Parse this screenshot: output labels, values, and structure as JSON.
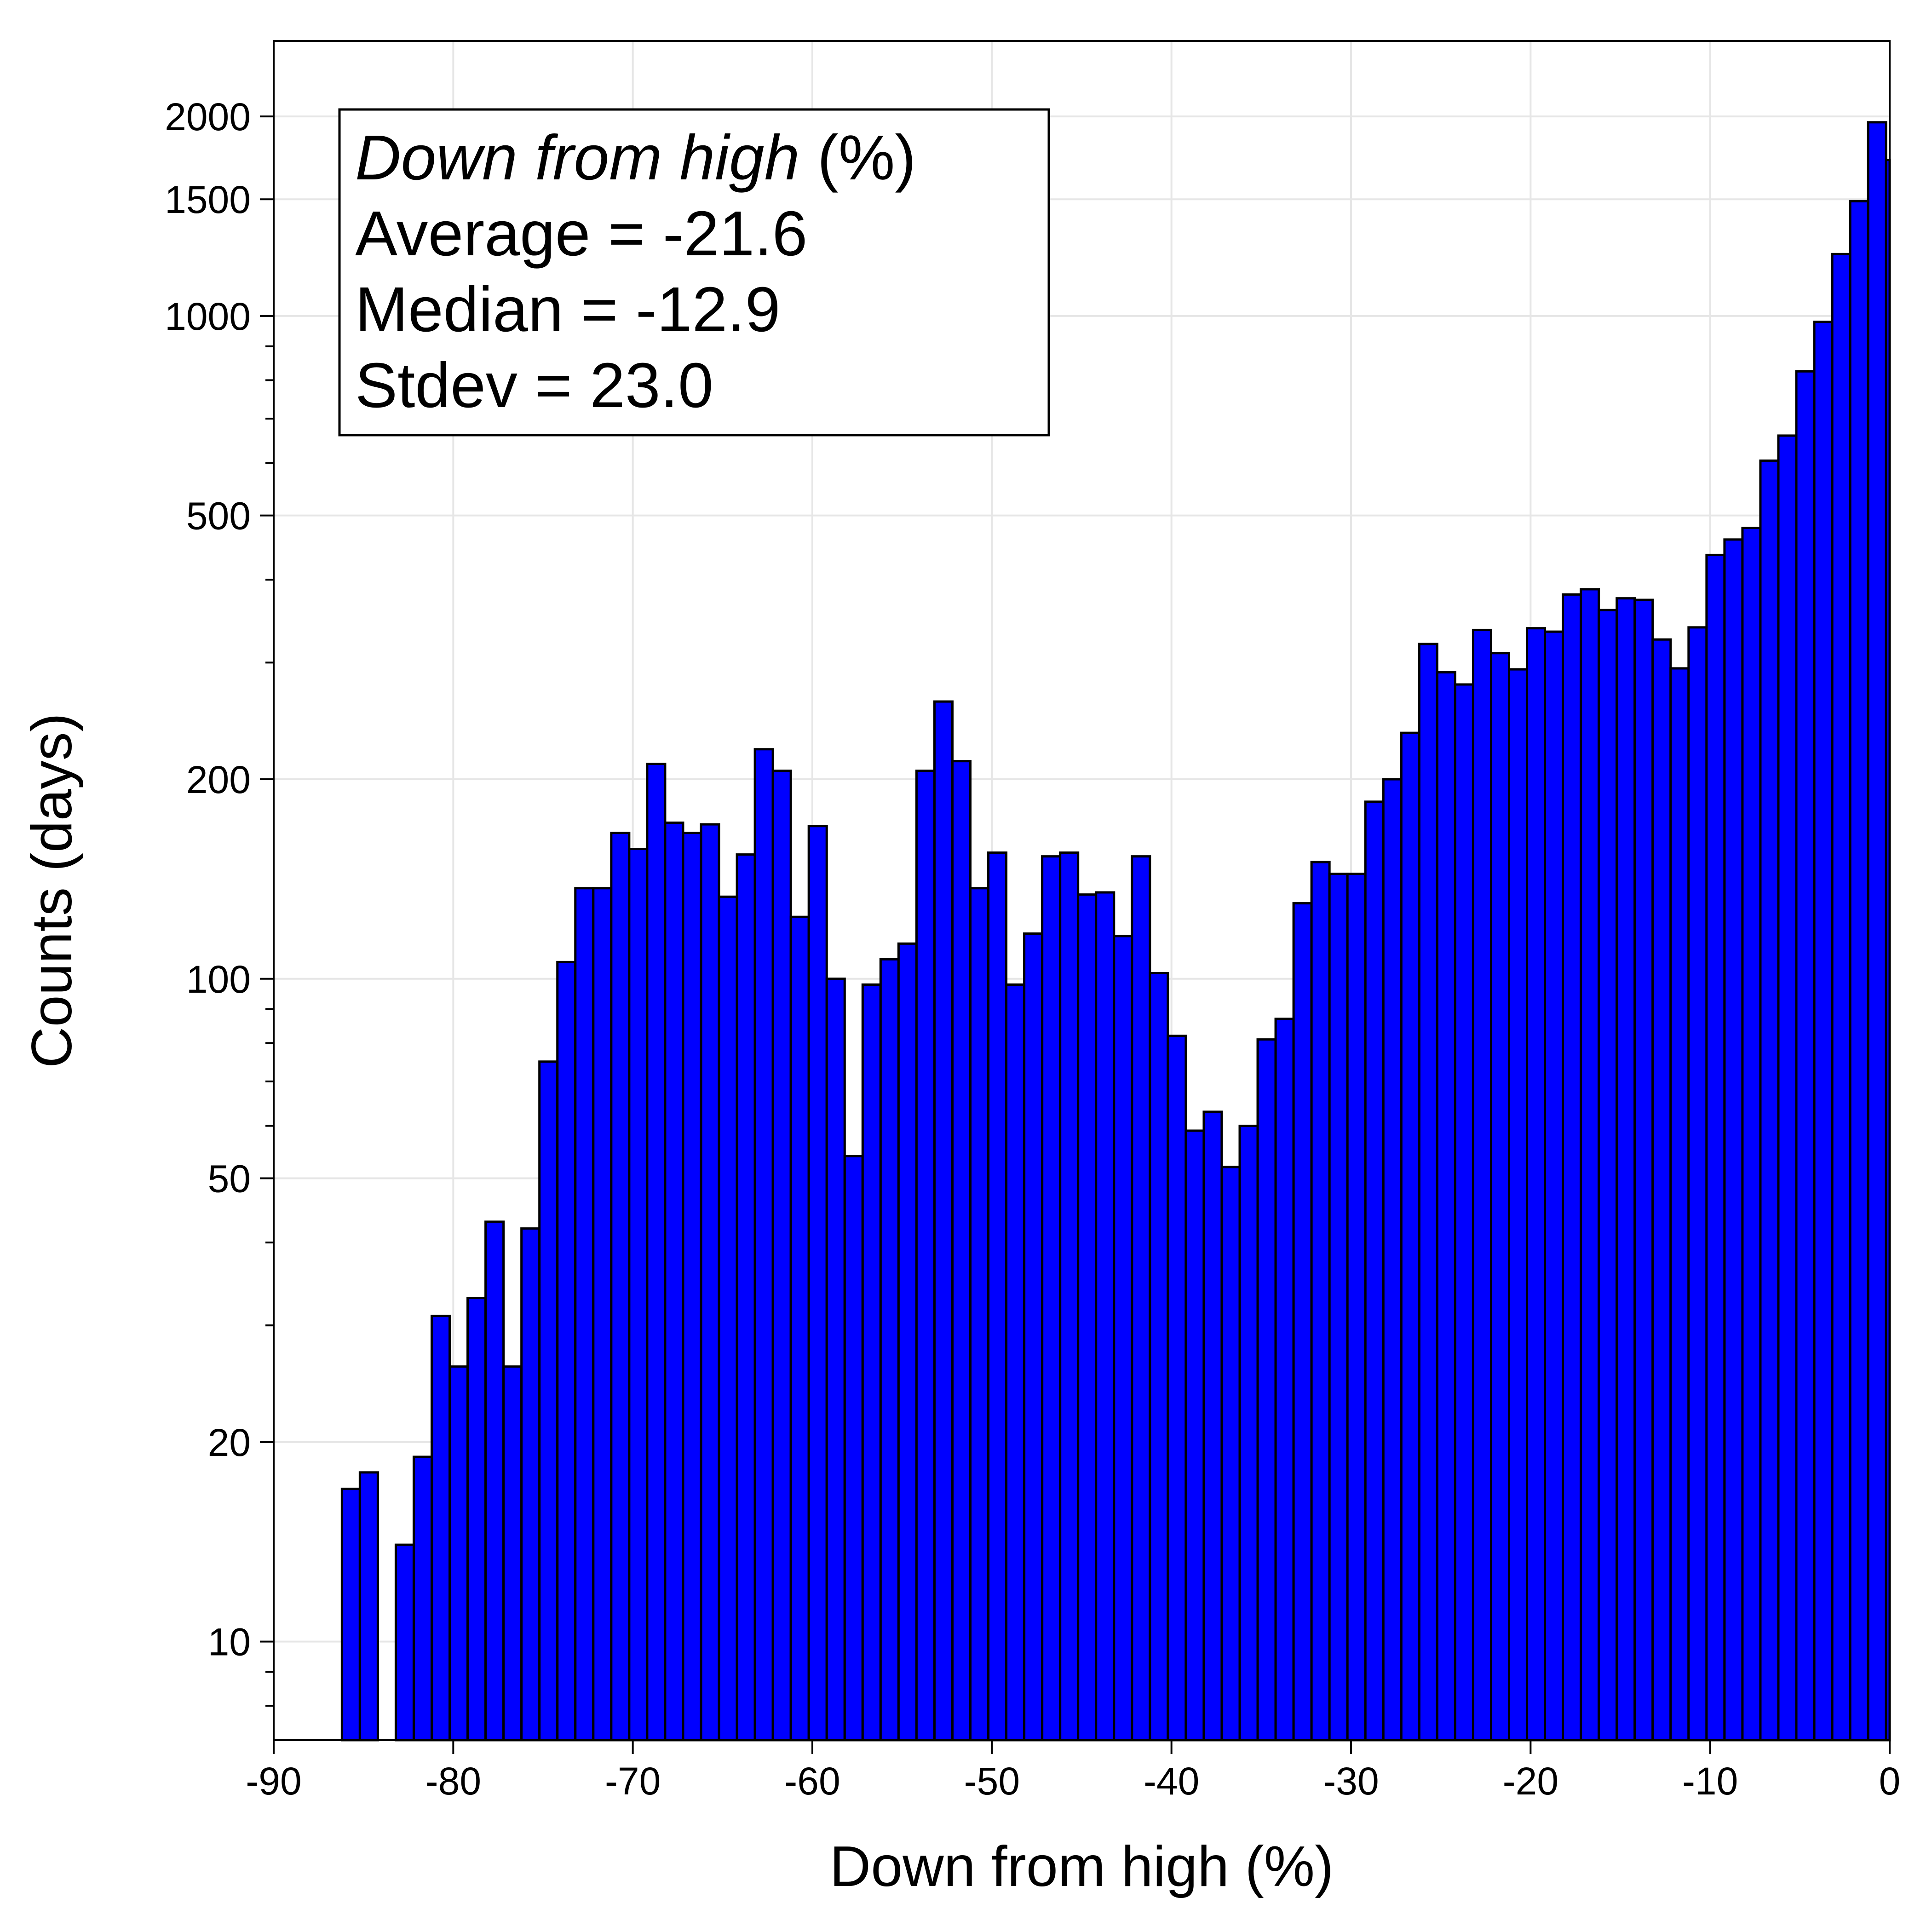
{
  "chart_data": {
    "type": "bar",
    "xlabel": "Down from high (%)",
    "ylabel": "Counts (days)",
    "xlim": [
      -90,
      0
    ],
    "ylim": [
      7.1,
      2600
    ],
    "yscale": "log",
    "grid": true,
    "bar_color": "#0000ff",
    "edge_color": "#000000",
    "x_ticks": [
      {
        "value": -90,
        "label": "-90"
      },
      {
        "value": -80,
        "label": "-80"
      },
      {
        "value": -70,
        "label": "-70"
      },
      {
        "value": -60,
        "label": "-60"
      },
      {
        "value": -50,
        "label": "-50"
      },
      {
        "value": -40,
        "label": "-40"
      },
      {
        "value": -30,
        "label": "-30"
      },
      {
        "value": -20,
        "label": "-20"
      },
      {
        "value": -10,
        "label": "-10"
      },
      {
        "value": 0,
        "label": "0"
      }
    ],
    "y_ticks": [
      {
        "value": 10,
        "label": "10"
      },
      {
        "value": 20,
        "label": "20"
      },
      {
        "value": 50,
        "label": "50"
      },
      {
        "value": 100,
        "label": "100"
      },
      {
        "value": 200,
        "label": "200"
      },
      {
        "value": 500,
        "label": "500"
      },
      {
        "value": 1000,
        "label": "1000"
      },
      {
        "value": 1500,
        "label": "1500"
      },
      {
        "value": 2000,
        "label": "2000"
      }
    ],
    "bins": {
      "x_start": [
        -86.2,
        -85.2,
        -84.2,
        -83.2,
        -82.2,
        -81.2,
        -80.2,
        -79.2,
        -78.2,
        -77.2,
        -76.2,
        -75.2,
        -74.2,
        -73.2,
        -72.2,
        -71.2,
        -70.2,
        -69.2,
        -68.2,
        -67.2,
        -66.2,
        -65.2,
        -64.2,
        -63.2,
        -62.2,
        -61.2,
        -60.2,
        -59.2,
        -58.2,
        -57.2,
        -56.2,
        -55.2,
        -54.2,
        -53.2,
        -52.2,
        -51.2,
        -50.2,
        -49.2,
        -48.2,
        -47.2,
        -46.2,
        -45.2,
        -44.2,
        -43.2,
        -42.2,
        -41.2,
        -40.2,
        -39.2,
        -38.2,
        -37.2,
        -36.2,
        -35.2,
        -34.2,
        -33.2,
        -32.2,
        -31.2,
        -30.2,
        -29.2,
        -28.2,
        -27.2,
        -26.2,
        -25.2,
        -24.2,
        -23.2,
        -22.2,
        -21.2,
        -20.2,
        -19.2,
        -18.2,
        -17.2,
        -16.2,
        -15.2,
        -14.2,
        -13.2,
        -12.2,
        -11.2,
        -10.2,
        -9.2,
        -8.2,
        -7.2,
        -6.2,
        -5.2,
        -4.2,
        -3.2,
        -2.2,
        -1.2
      ],
      "width": 1.0,
      "counts": [
        17,
        18,
        0,
        14,
        19,
        31,
        26,
        33,
        43,
        26,
        42,
        75,
        106,
        137,
        137,
        166,
        157,
        211,
        172,
        166,
        171,
        133,
        154,
        222,
        206,
        124,
        170,
        100,
        54,
        98,
        107,
        113,
        206,
        262,
        213,
        137,
        155,
        98,
        117,
        153,
        155,
        134,
        135,
        116,
        153,
        102,
        82,
        59,
        63,
        52,
        60,
        81,
        87,
        130,
        150,
        144,
        144,
        185,
        200,
        235,
        320,
        290,
        278,
        336,
        310,
        293,
        338,
        334,
        380,
        387,
        360,
        375,
        373,
        325,
        294,
        339,
        436,
        460,
        479,
        605,
        660,
        825,
        980,
        1240,
        1490,
        1960
      ]
    },
    "last_bin_partial": {
      "x": -0.2,
      "count": 1720
    },
    "annotation": {
      "title_italic": "Down from high",
      "title_suffix": " (%)",
      "lines": [
        "Average = -21.6",
        "Median = -12.9",
        "Stdev = 23.0"
      ]
    }
  }
}
